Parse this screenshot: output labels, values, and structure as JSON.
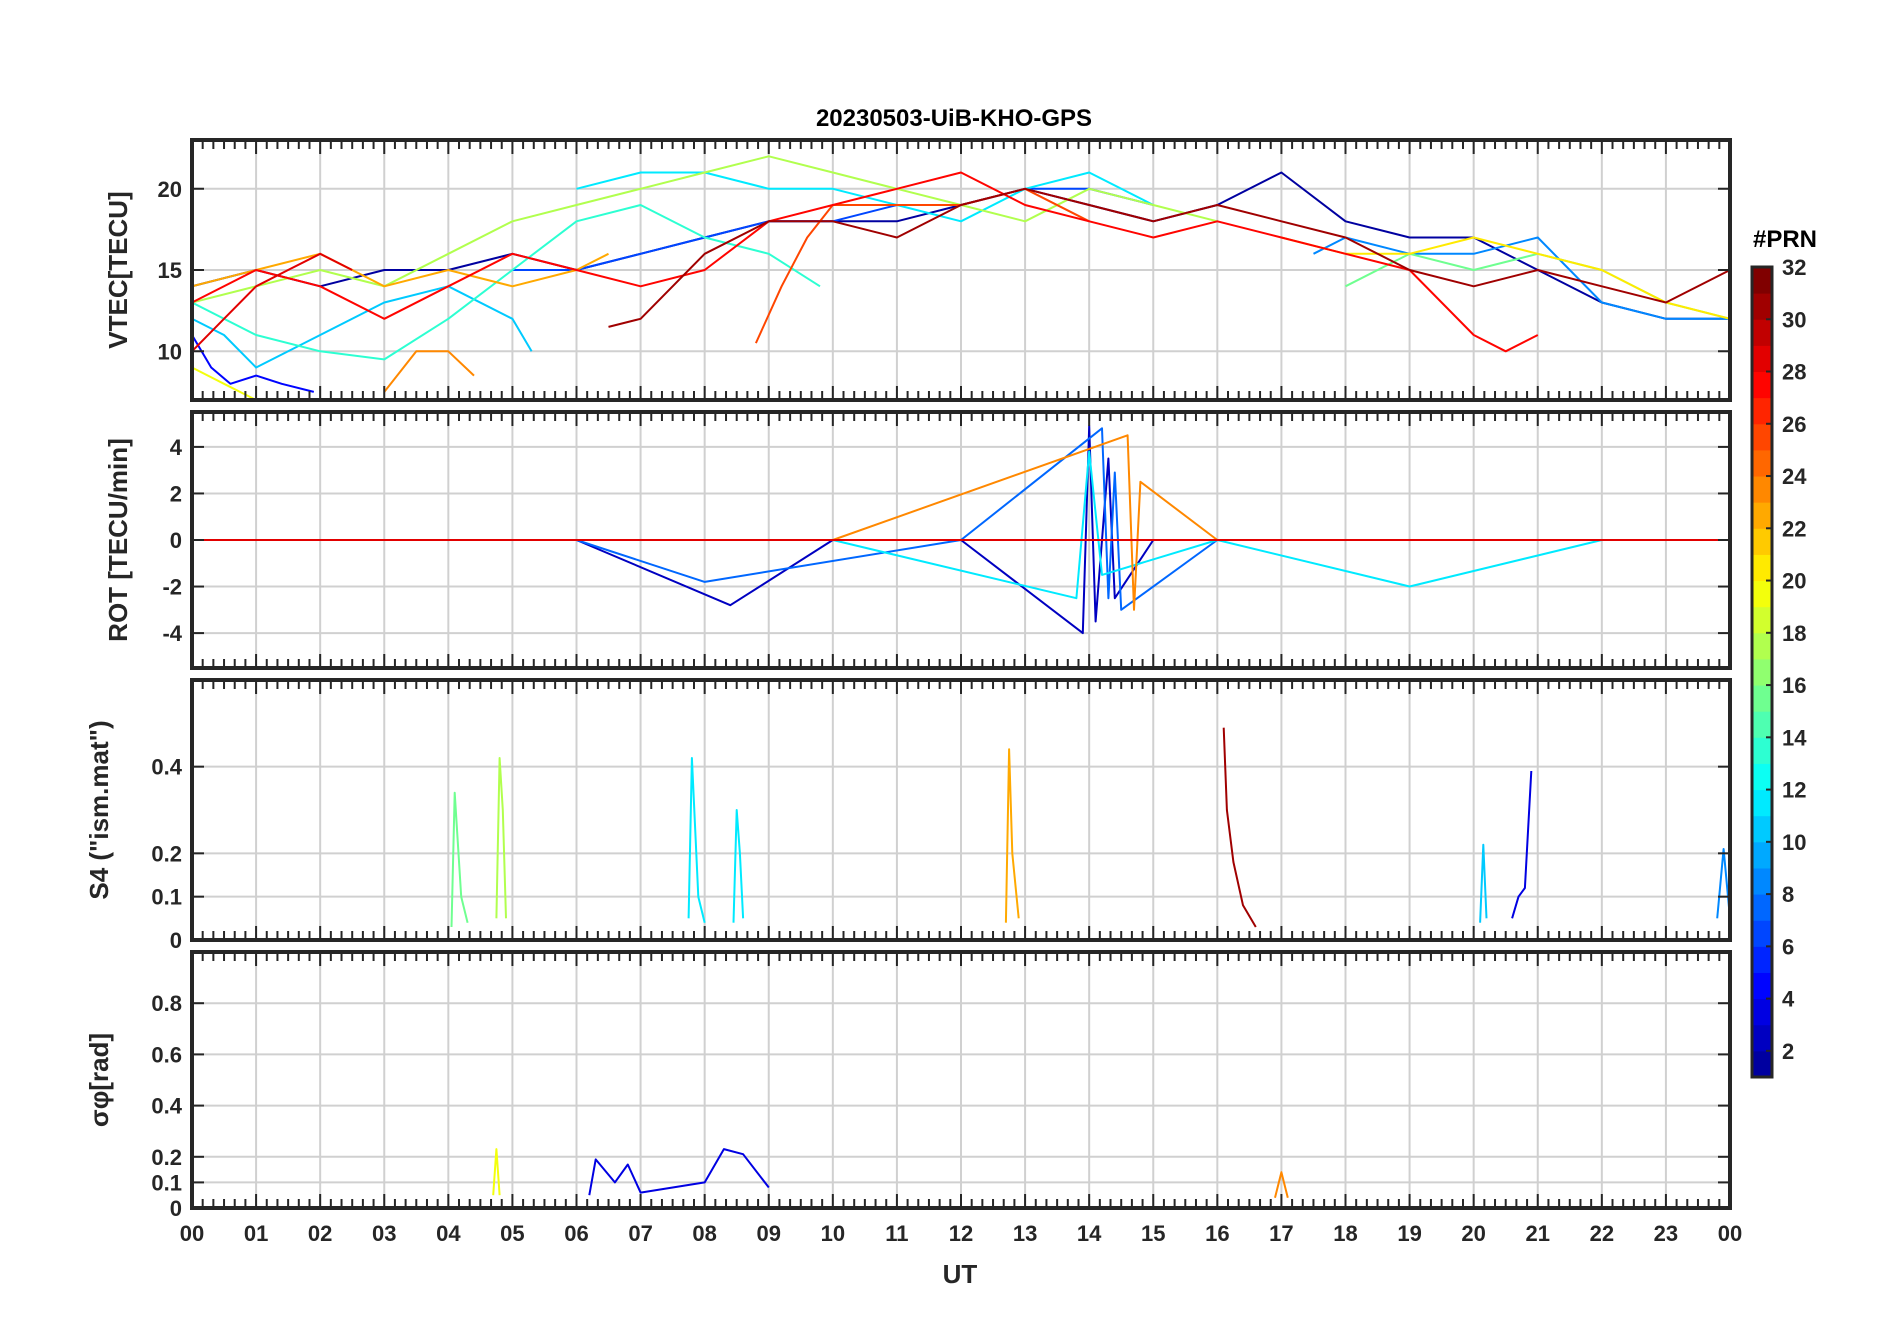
{
  "chart_data": {
    "type": "line",
    "title": "20230503-UiB-KHO-GPS",
    "xlabel": "UT",
    "xlim": [
      0,
      24
    ],
    "x_tick_labels": [
      "00",
      "01",
      "02",
      "03",
      "04",
      "05",
      "06",
      "07",
      "08",
      "09",
      "10",
      "11",
      "12",
      "13",
      "14",
      "15",
      "16",
      "17",
      "18",
      "19",
      "20",
      "21",
      "22",
      "23",
      "00"
    ],
    "grid": true,
    "colorbar": {
      "label": "#PRN",
      "colormap": "jet",
      "range": [
        1,
        32
      ],
      "ticks": [
        2,
        4,
        6,
        8,
        10,
        12,
        14,
        16,
        18,
        20,
        22,
        24,
        26,
        28,
        30,
        32
      ],
      "placement": "right"
    },
    "panels": [
      {
        "id": "vtec",
        "ylabel": "VTEC[TECU]",
        "ylim": [
          7,
          23
        ],
        "yticks": [
          10,
          15,
          20
        ],
        "series": [
          {
            "prn": 2,
            "x": [
              0.0,
              1.0,
              2.0,
              3.0,
              4.0,
              5.0,
              6.0,
              7.0,
              8.0,
              9.0,
              10.0,
              11.0,
              12.0,
              13.0,
              14.0,
              15.0,
              16.0,
              17.0,
              18.0,
              19.0,
              20.0,
              21.0,
              22.0,
              23.0,
              24.0
            ],
            "y": [
              14,
              15,
              14,
              15,
              15,
              16,
              15,
              16,
              17,
              18,
              18,
              18,
              19,
              20,
              19,
              18,
              19,
              21,
              18,
              17,
              17,
              15,
              13,
              12,
              12
            ]
          },
          {
            "prn": 5,
            "x": [
              0.0,
              0.3,
              0.6,
              1.0,
              1.4,
              1.9
            ],
            "y": [
              11,
              9,
              8,
              8.5,
              8,
              7.5
            ]
          },
          {
            "prn": 7,
            "x": [
              5.0,
              6.0,
              7.0,
              8.0,
              9.0,
              10.0,
              11.0,
              12.0,
              13.0,
              14.0,
              15.0
            ],
            "y": [
              15,
              15,
              16,
              17,
              18,
              18,
              19,
              19,
              20,
              20,
              19
            ]
          },
          {
            "prn": 9,
            "x": [
              17.5,
              18.0,
              19.0,
              20.0,
              21.0,
              22.0,
              23.0,
              24.0
            ],
            "y": [
              16,
              17,
              16,
              16,
              17,
              13,
              12,
              12
            ]
          },
          {
            "prn": 11,
            "x": [
              0.0,
              0.5,
              1.0,
              2.0,
              3.0,
              4.0,
              5.0,
              5.3
            ],
            "y": [
              12,
              11,
              9,
              11,
              13,
              14,
              12,
              10
            ]
          },
          {
            "prn": 12,
            "x": [
              6.0,
              7.0,
              8.0,
              9.0,
              10.0,
              11.0,
              12.0,
              13.0,
              14.0,
              15.0
            ],
            "y": [
              20,
              21,
              21,
              20,
              20,
              19,
              18,
              20,
              21,
              19
            ]
          },
          {
            "prn": 14,
            "x": [
              0.0,
              1.0,
              2.0,
              3.0,
              4.0,
              5.0,
              6.0,
              7.0,
              8.0,
              9.0,
              9.8
            ],
            "y": [
              13,
              11,
              10,
              9.5,
              12,
              15,
              18,
              19,
              17,
              16,
              14
            ]
          },
          {
            "prn": 16,
            "x": [
              18.0,
              19.0,
              20.0,
              21.0,
              22.0,
              23.0,
              24.0
            ],
            "y": [
              14,
              16,
              15,
              16,
              15,
              13,
              12
            ]
          },
          {
            "prn": 18,
            "x": [
              0.0,
              1.0,
              2.0,
              3.0,
              4.0,
              5.0,
              6.0,
              7.0,
              8.0,
              9.0,
              10.0,
              11.0,
              12.0,
              13.0,
              14.0,
              15.0,
              16.0
            ],
            "y": [
              13,
              14,
              15,
              14,
              16,
              18,
              19,
              20,
              21,
              22,
              21,
              20,
              19,
              18,
              20,
              19,
              18
            ]
          },
          {
            "prn": 20,
            "x": [
              0.0,
              0.5,
              1.0
            ],
            "y": [
              9,
              8,
              7
            ]
          },
          {
            "prn": 21,
            "x": [
              17.0,
              18.0,
              19.0,
              20.0,
              21.0,
              22.0,
              23.0,
              24.0
            ],
            "y": [
              17,
              16,
              16,
              17,
              16,
              15,
              13,
              12
            ]
          },
          {
            "prn": 23,
            "x": [
              0.0,
              1.0,
              2.0,
              3.0,
              4.0,
              5.0,
              6.0,
              6.5
            ],
            "y": [
              14,
              15,
              16,
              14,
              15,
              14,
              15,
              16
            ]
          },
          {
            "prn": 24,
            "x": [
              3.0,
              3.5,
              4.0,
              4.4
            ],
            "y": [
              7.5,
              10,
              10,
              8.5
            ]
          },
          {
            "prn": 26,
            "x": [
              8.8,
              9.2,
              9.6,
              10.0,
              11.0,
              12.0,
              13.0,
              14.0
            ],
            "y": [
              10.5,
              14,
              17,
              19,
              19,
              19,
              20,
              18
            ]
          },
          {
            "prn": 28,
            "x": [
              0.0,
              1.0,
              2.0,
              3.0,
              4.0,
              5.0,
              6.0,
              7.0,
              8.0,
              9.0,
              10.0,
              11.0,
              12.0,
              13.0,
              14.0,
              15.0,
              16.0,
              17.0,
              18.0,
              19.0,
              20.0,
              20.5,
              21.0
            ],
            "y": [
              13,
              15,
              14,
              12,
              14,
              16,
              15,
              14,
              15,
              18,
              19,
              20,
              21,
              19,
              18,
              17,
              18,
              17,
              16,
              15,
              11,
              10,
              11
            ]
          },
          {
            "prn": 29,
            "x": [
              0.0,
              0.5,
              1.0,
              1.5,
              2.0,
              2.5
            ],
            "y": [
              10,
              12,
              14,
              15,
              16,
              15
            ]
          },
          {
            "prn": 31,
            "x": [
              6.5,
              7.0,
              8.0,
              9.0,
              10.0,
              11.0,
              12.0,
              13.0,
              14.0,
              15.0,
              16.0,
              17.0,
              18.0,
              19.0,
              20.0,
              21.0,
              22.0,
              23.0,
              24.0
            ],
            "y": [
              11.5,
              12,
              16,
              18,
              18,
              17,
              19,
              20,
              19,
              18,
              19,
              18,
              17,
              15,
              14,
              15,
              14,
              13,
              15
            ]
          }
        ]
      },
      {
        "id": "rot",
        "ylabel": "ROT [TECU/min]",
        "ylim": [
          -5.5,
          5.5
        ],
        "yticks": [
          -4,
          -2,
          0,
          2,
          4
        ],
        "series": [
          {
            "prn": 3,
            "x": [
              0,
              4,
              6,
              8.4,
              10,
              12,
              13.9,
              14.0,
              14.1,
              14.3,
              14.4,
              15,
              18,
              20,
              22,
              24
            ],
            "y": [
              0,
              0,
              0,
              -2.8,
              0,
              0,
              -4.0,
              4.9,
              -3.5,
              3.5,
              -2.5,
              0,
              0,
              0,
              0,
              0
            ]
          },
          {
            "prn": 8,
            "x": [
              0,
              6,
              8,
              12,
              14.2,
              14.3,
              14.4,
              14.5,
              16,
              20,
              24
            ],
            "y": [
              0,
              0,
              -1.8,
              0,
              4.8,
              -2.5,
              2.9,
              -3.0,
              0,
              0,
              0
            ]
          },
          {
            "prn": 12,
            "x": [
              0,
              10,
              13.8,
              14.0,
              14.2,
              16,
              19,
              22,
              24
            ],
            "y": [
              0,
              0,
              -2.5,
              3.8,
              -1.5,
              0,
              -2.0,
              0,
              0
            ]
          },
          {
            "prn": 24,
            "x": [
              0,
              5,
              10,
              14.6,
              14.7,
              14.8,
              16,
              20,
              24
            ],
            "y": [
              0,
              0,
              0,
              4.5,
              -3.0,
              2.5,
              0,
              0,
              0
            ]
          },
          {
            "prn": 29,
            "x": [
              0,
              24
            ],
            "y": [
              0,
              0
            ]
          }
        ]
      },
      {
        "id": "s4",
        "ylabel": "S4 (\"ism.mat\")",
        "ylim": [
          0,
          0.6
        ],
        "yticks": [
          0,
          0.1,
          0.2,
          0.4
        ],
        "series": [
          {
            "prn": 31,
            "x": [
              16.1,
              16.15,
              16.25,
              16.4,
              16.6
            ],
            "y": [
              0.49,
              0.3,
              0.18,
              0.08,
              0.03
            ]
          },
          {
            "prn": 18,
            "x": [
              4.75,
              4.8,
              4.85,
              4.9
            ],
            "y": [
              0.05,
              0.42,
              0.3,
              0.05
            ]
          },
          {
            "prn": 16,
            "x": [
              4.05,
              4.1,
              4.2,
              4.3
            ],
            "y": [
              0.03,
              0.34,
              0.1,
              0.04
            ]
          },
          {
            "prn": 12,
            "x": [
              7.75,
              7.8,
              7.9,
              8.0
            ],
            "y": [
              0.05,
              0.42,
              0.1,
              0.04
            ]
          },
          {
            "prn": 12,
            "x": [
              8.45,
              8.5,
              8.55,
              8.6
            ],
            "y": [
              0.04,
              0.3,
              0.2,
              0.05
            ]
          },
          {
            "prn": 23,
            "x": [
              12.7,
              12.75,
              12.8,
              12.9
            ],
            "y": [
              0.04,
              0.44,
              0.2,
              0.05
            ]
          },
          {
            "prn": 4,
            "x": [
              20.6,
              20.7,
              20.8,
              20.9
            ],
            "y": [
              0.05,
              0.1,
              0.12,
              0.39
            ]
          },
          {
            "prn": 11,
            "x": [
              20.1,
              20.15,
              20.2
            ],
            "y": [
              0.04,
              0.22,
              0.05
            ]
          },
          {
            "prn": 9,
            "x": [
              23.8,
              23.9,
              24.0
            ],
            "y": [
              0.05,
              0.21,
              0.05
            ]
          }
        ]
      },
      {
        "id": "sigma",
        "ylabel": "σφ[rad]",
        "ylim": [
          0,
          1.0
        ],
        "yticks": [
          0,
          0.1,
          0.2,
          0.4,
          0.6,
          0.8
        ],
        "series": [
          {
            "prn": 4,
            "x": [
              6.2,
              6.3,
              6.6,
              6.8,
              7.0,
              8.0,
              8.3,
              8.6,
              9.0
            ],
            "y": [
              0.05,
              0.19,
              0.1,
              0.17,
              0.06,
              0.1,
              0.23,
              0.21,
              0.08
            ]
          },
          {
            "prn": 20,
            "x": [
              4.7,
              4.75,
              4.8
            ],
            "y": [
              0.05,
              0.23,
              0.05
            ]
          },
          {
            "prn": 24,
            "x": [
              16.9,
              17.0,
              17.1
            ],
            "y": [
              0.04,
              0.14,
              0.04
            ]
          }
        ]
      }
    ]
  }
}
